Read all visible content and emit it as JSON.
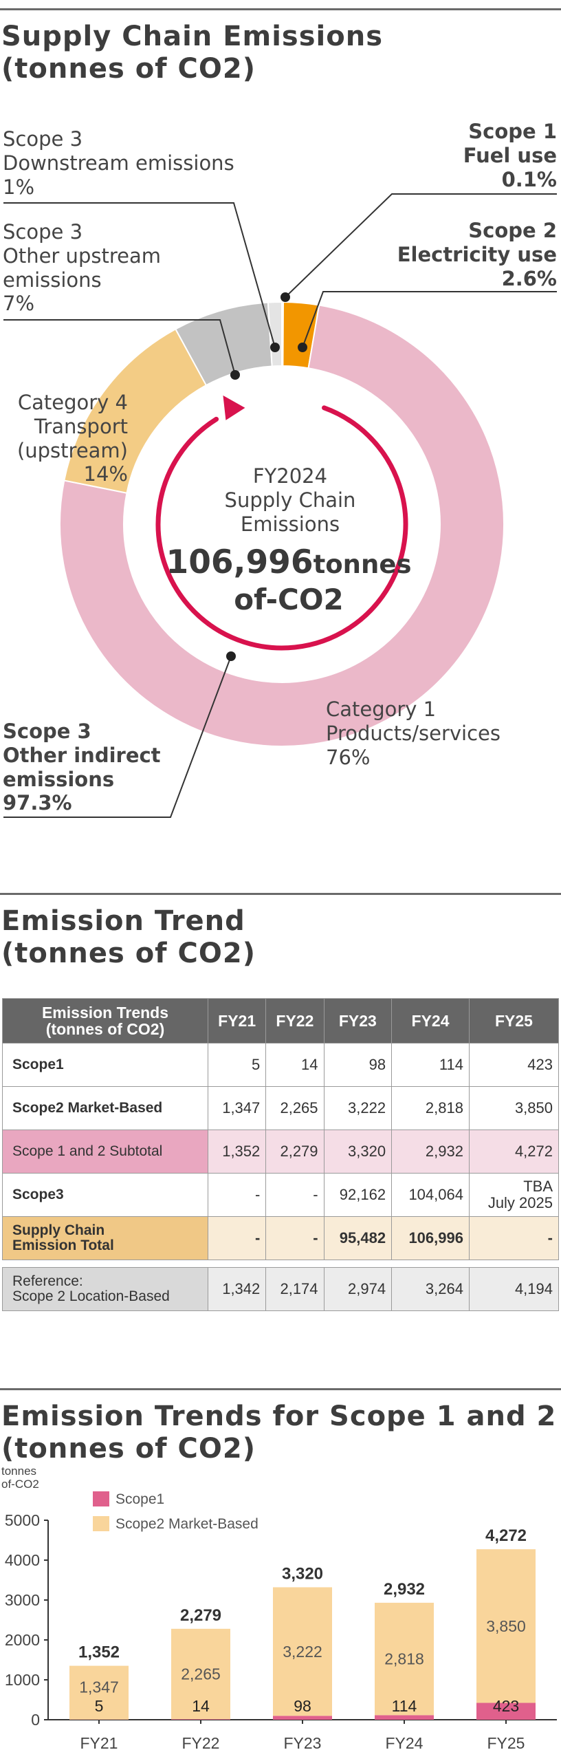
{
  "section1": {
    "title_line1": "Supply Chain Emissions",
    "title_line2": "(tonnes of CO2)",
    "center": {
      "line1": "FY2024",
      "line2": "Supply Chain",
      "line3": "Emissions",
      "value": "106,996",
      "unit": "tonnes",
      "unit2": "of-CO2"
    },
    "labels": {
      "s3_downstream": [
        "Scope 3",
        "Downstream emissions",
        "1%"
      ],
      "s3_other_upstream": [
        "Scope 3",
        "Other upstream",
        "emissions",
        "7%"
      ],
      "cat4": [
        "Category 4",
        "Transport",
        "(upstream)",
        "14%"
      ],
      "s1": [
        "Scope 1",
        "Fuel use",
        "0.1%"
      ],
      "s2": [
        "Scope 2",
        "Electricity use",
        "2.6%"
      ],
      "cat1": [
        "Category 1",
        "Products/services",
        "76%"
      ],
      "s3_indirect": [
        "Scope 3",
        "Other indirect",
        "emissions",
        "97.3%"
      ]
    },
    "colors": {
      "products": "#ebb8c9",
      "transport": "#f3cc85",
      "upstream": "#c2c2c2",
      "downstream": "#e4e4e4",
      "fuel": "#f6d9a6",
      "electricity": "#f29600",
      "arrow": "#d8124d"
    }
  },
  "chart_data": [
    {
      "type": "pie",
      "title": "Supply Chain Emissions (tonnes of CO2)",
      "labels": [
        "Category 1 Products/services",
        "Category 4 Transport (upstream)",
        "Scope 3 Other upstream emissions",
        "Scope 3 Downstream emissions",
        "Scope 1 Fuel use",
        "Scope 2 Electricity use"
      ],
      "values": [
        76,
        14,
        7,
        1,
        0.1,
        2.6
      ]
    },
    {
      "type": "bar",
      "stacked": true,
      "categories": [
        "FY21",
        "FY22",
        "FY23",
        "FY24",
        "FY25"
      ],
      "series": [
        {
          "name": "Scope1",
          "values": [
            5,
            14,
            98,
            114,
            423
          ],
          "color": "#e0608c"
        },
        {
          "name": "Scope2 Market-Based",
          "values": [
            1347,
            2265,
            3222,
            2818,
            3850
          ],
          "color": "#f9d59b"
        }
      ],
      "totals": [
        "1,352",
        "2,279",
        "3,320",
        "2,932",
        "4,272"
      ],
      "seg_labels_scope1": [
        "5",
        "14",
        "98",
        "114",
        "423"
      ],
      "seg_labels_scope2": [
        "1,347",
        "2,265",
        "3,222",
        "2,818",
        "3,850"
      ],
      "ylabel": "tonnes\nof-CO2",
      "ylabel_lines": [
        "tonnes",
        "of-CO2"
      ],
      "ylim": [
        0,
        5000
      ],
      "yticks": [
        0,
        1000,
        2000,
        3000,
        4000,
        5000
      ],
      "ytick_labels": [
        "0",
        "1000",
        "2000",
        "3000",
        "4000",
        "5000"
      ],
      "legend": "top-left",
      "grid": false
    }
  ],
  "section2": {
    "title_line1": "Emission Trend",
    "title_line2": "(tonnes of CO2)",
    "corner_line1": "Emission Trends",
    "corner_line2": "(tonnes of CO2)",
    "years": [
      "FY21",
      "FY22",
      "FY23",
      "FY24",
      "FY25"
    ],
    "rows": {
      "scope1": {
        "label": "Scope1",
        "values": [
          "5",
          "14",
          "98",
          "114",
          "423"
        ]
      },
      "scope2": {
        "label": "Scope2 Market-Based",
        "values": [
          "1,347",
          "2,265",
          "3,222",
          "2,818",
          "3,850"
        ]
      },
      "subtotal": {
        "label": "Scope 1 and 2 Subtotal",
        "values": [
          "1,352",
          "2,279",
          "3,320",
          "2,932",
          "4,272"
        ]
      },
      "scope3": {
        "label": "Scope3",
        "values": [
          "-",
          "-",
          "92,162",
          "104,064"
        ],
        "tba1": "TBA",
        "tba2": "July 2025"
      },
      "total": {
        "label1": "Supply Chain",
        "label2": "Emission Total",
        "values": [
          "-",
          "-",
          "95,482",
          "106,996",
          "-"
        ]
      },
      "reference": {
        "label1": "Reference:",
        "label2": "Scope 2 Location-Based",
        "values": [
          "1,342",
          "2,174",
          "2,974",
          "3,264",
          "4,194"
        ]
      }
    }
  },
  "section3": {
    "title_line1": "Emission Trends for Scope 1 and 2",
    "title_line2": "(tonnes of CO2)"
  }
}
